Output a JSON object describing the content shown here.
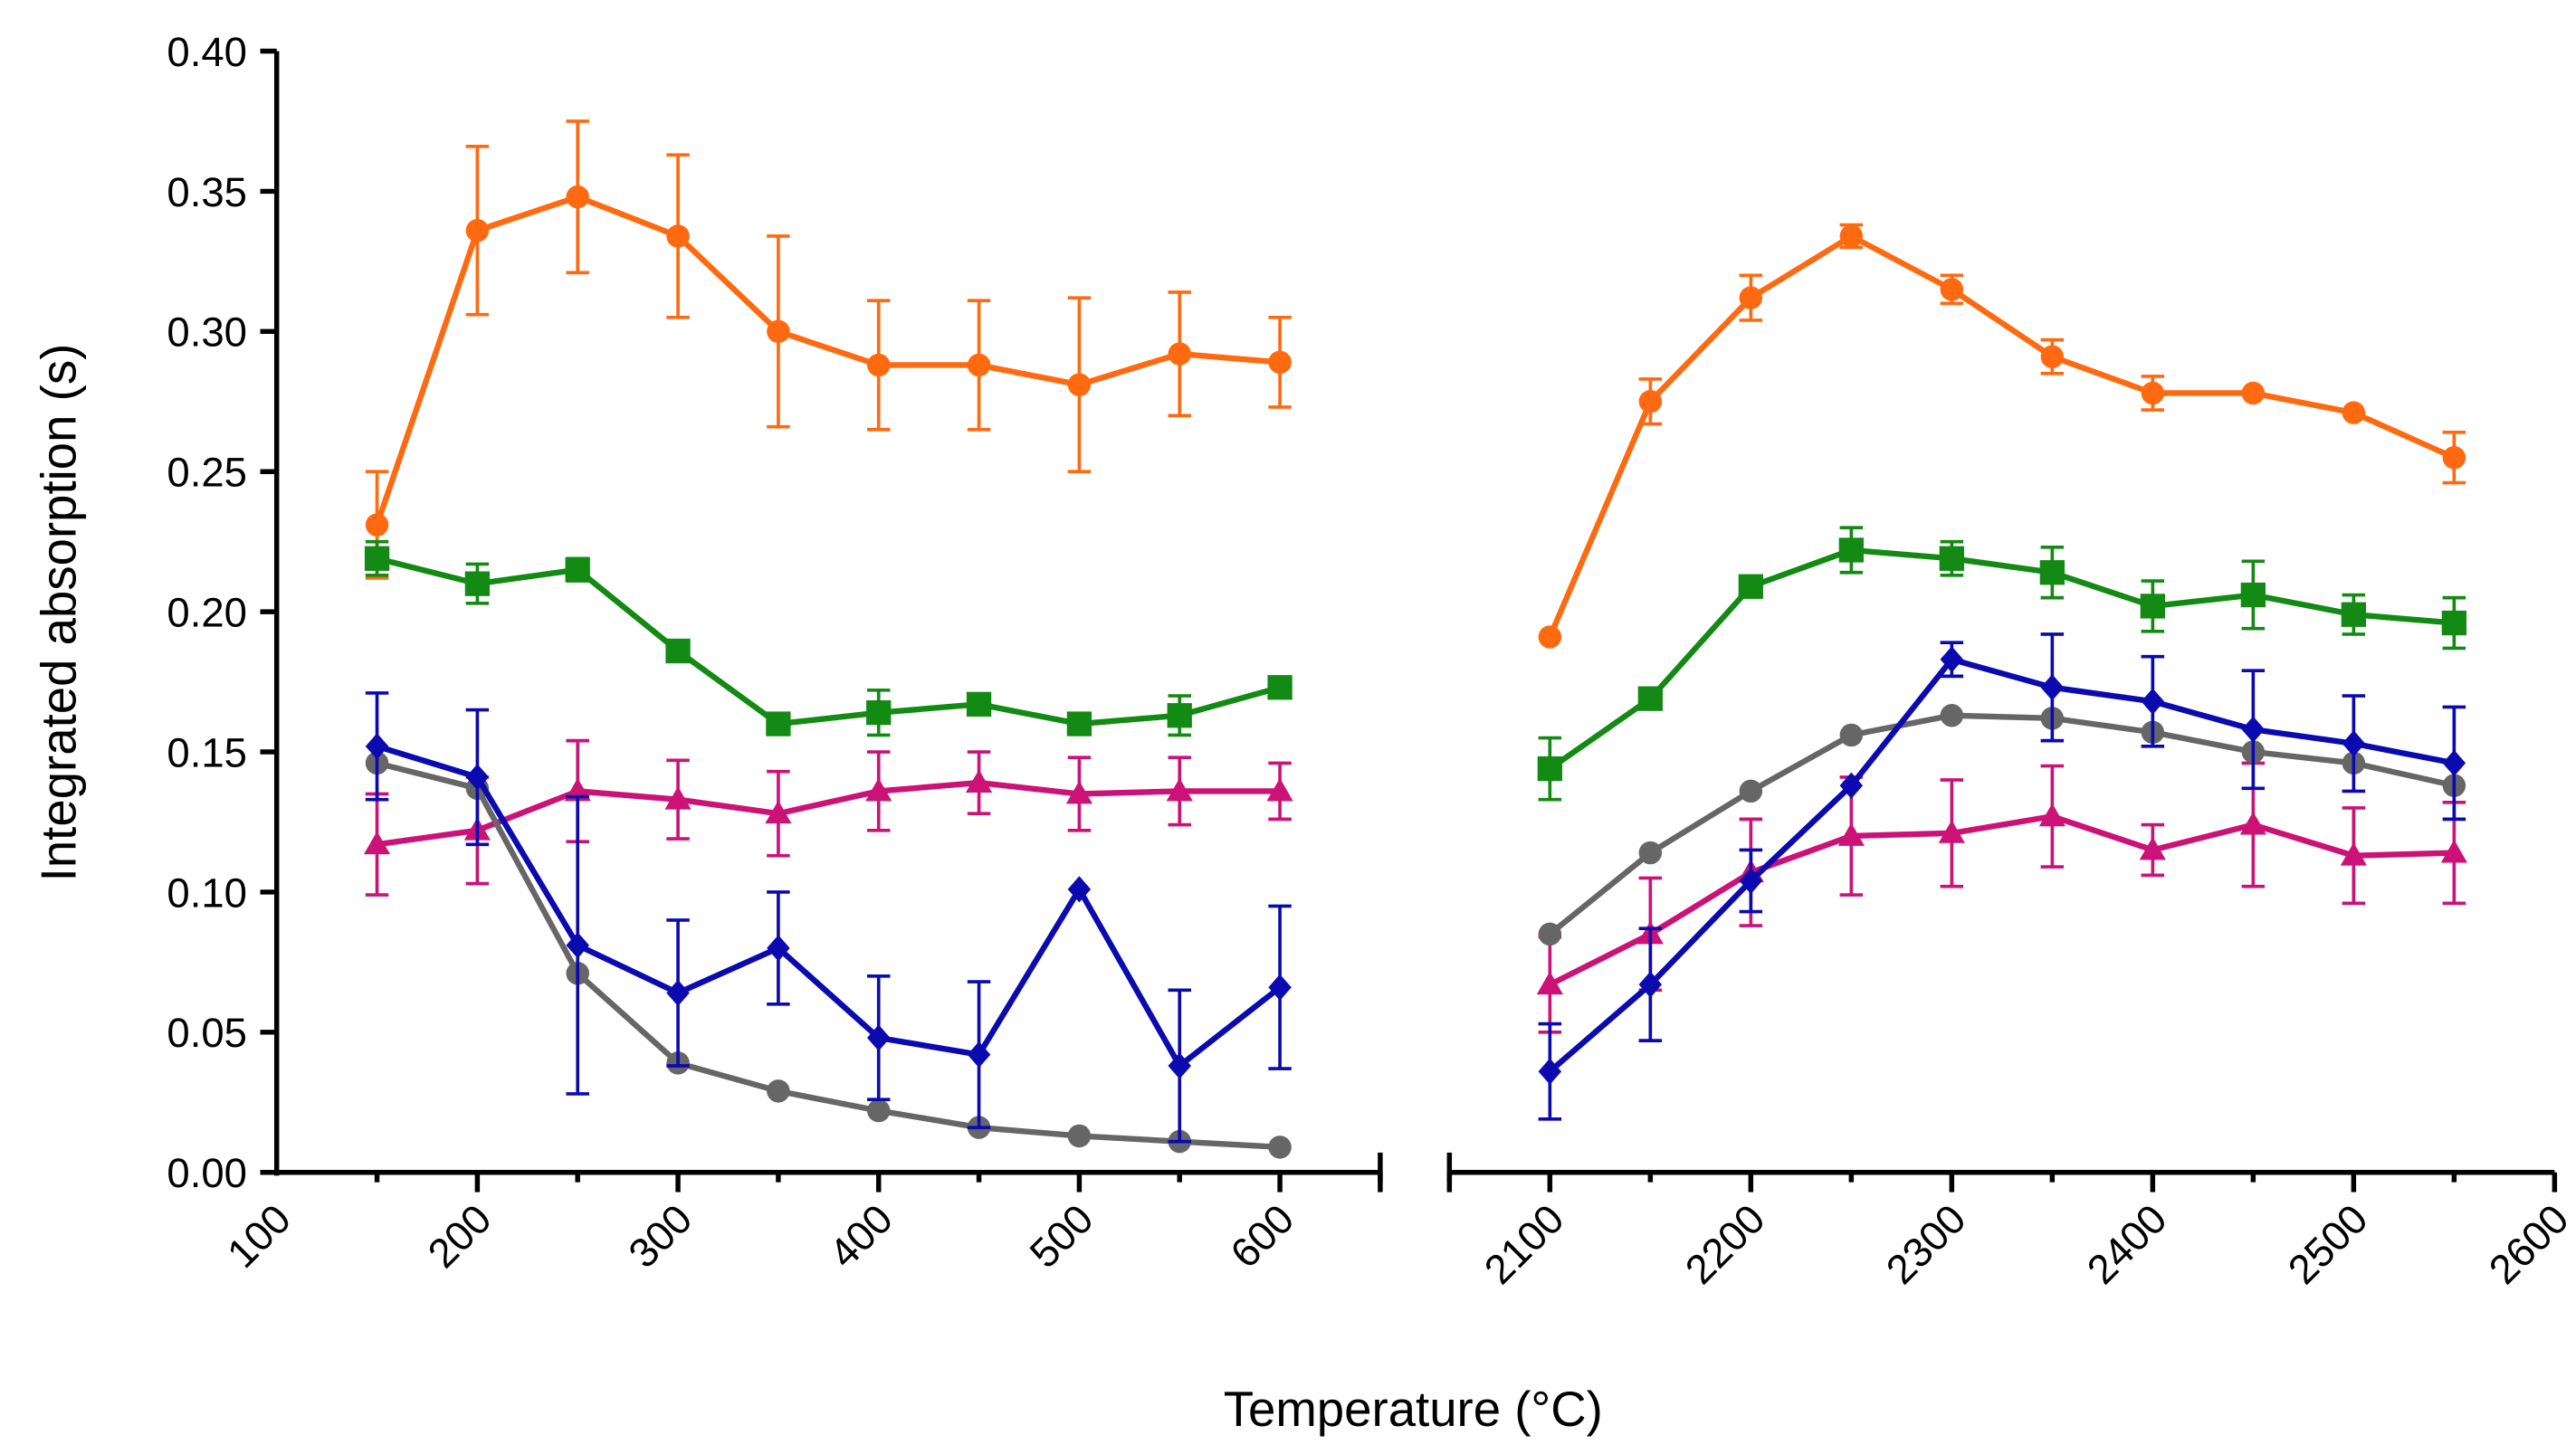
{
  "chart_data": {
    "type": "line",
    "title": "",
    "xlabel": "Temperature (°C)",
    "ylabel": "Integrated absorption (s)",
    "ylim": [
      0,
      0.4
    ],
    "yticks": [
      "0.00",
      "0.05",
      "0.10",
      "0.15",
      "0.20",
      "0.25",
      "0.30",
      "0.35",
      "0.40"
    ],
    "x_panels": [
      {
        "xlim": [
          100,
          650
        ],
        "ticks": [
          "100",
          "200",
          "300",
          "400",
          "500",
          "600"
        ]
      },
      {
        "xlim": [
          2050,
          2600
        ],
        "ticks": [
          "2100",
          "2200",
          "2300",
          "2400",
          "2500",
          "2600"
        ]
      }
    ],
    "x": [
      [
        150,
        200,
        250,
        300,
        350,
        400,
        450,
        500,
        550,
        600
      ],
      [
        2100,
        2150,
        2200,
        2250,
        2300,
        2350,
        2400,
        2450,
        2500,
        2550
      ]
    ],
    "grid": false,
    "series": [
      {
        "name": "orange-circle",
        "color": "#ff6a10",
        "marker": "circle",
        "values": [
          [
            0.231,
            0.336,
            0.348,
            0.334,
            0.3,
            0.288,
            0.288,
            0.281,
            0.292,
            0.289
          ],
          [
            0.191,
            0.275,
            0.312,
            0.334,
            0.315,
            0.291,
            0.278,
            0.278,
            0.271,
            0.255
          ]
        ],
        "errors": [
          [
            0.019,
            0.03,
            0.027,
            0.029,
            0.034,
            0.023,
            0.023,
            0.031,
            0.022,
            0.016
          ],
          [
            0,
            0.008,
            0.008,
            0.004,
            0.005,
            0.006,
            0.006,
            0,
            0,
            0.009
          ]
        ]
      },
      {
        "name": "green-square",
        "color": "#138a13",
        "marker": "square",
        "values": [
          [
            0.219,
            0.21,
            0.215,
            0.186,
            0.16,
            0.164,
            0.167,
            0.16,
            0.163,
            0.173
          ],
          [
            0.144,
            0.169,
            0.209,
            0.222,
            0.219,
            0.214,
            0.202,
            0.206,
            0.199,
            0.196
          ]
        ],
        "errors": [
          [
            0.006,
            0.007,
            0.004,
            0,
            0,
            0.008,
            0,
            0,
            0.007,
            0
          ],
          [
            0.011,
            0,
            0,
            0.008,
            0.006,
            0.009,
            0.009,
            0.012,
            0.007,
            0.009
          ]
        ]
      },
      {
        "name": "magenta-triangle",
        "color": "#cc1177",
        "marker": "triangle",
        "values": [
          [
            0.117,
            0.122,
            0.136,
            0.133,
            0.128,
            0.136,
            0.139,
            0.135,
            0.136,
            0.136
          ],
          [
            0.067,
            0.085,
            0.107,
            0.12,
            0.121,
            0.127,
            0.115,
            0.124,
            0.113,
            0.114
          ]
        ],
        "errors": [
          [
            0.018,
            0.019,
            0.018,
            0.014,
            0.015,
            0.014,
            0.011,
            0.013,
            0.012,
            0.01
          ],
          [
            0.017,
            0.02,
            0.019,
            0.021,
            0.019,
            0.018,
            0.009,
            0.022,
            0.017,
            0.018
          ]
        ]
      },
      {
        "name": "gray-circle",
        "color": "#666666",
        "marker": "circle",
        "values": [
          [
            0.146,
            0.137,
            0.071,
            0.039,
            0.029,
            0.022,
            0.016,
            0.013,
            0.011,
            0.009
          ],
          [
            0.085,
            0.114,
            0.136,
            0.156,
            0.163,
            0.162,
            0.157,
            0.15,
            0.146,
            0.138
          ]
        ],
        "errors": [
          [
            0,
            0,
            0,
            0,
            0,
            0,
            0,
            0,
            0,
            0
          ],
          [
            0,
            0,
            0,
            0,
            0,
            0,
            0,
            0,
            0,
            0
          ]
        ]
      },
      {
        "name": "blue-diamond",
        "color": "#0a0ab0",
        "marker": "diamond",
        "values": [
          [
            0.152,
            0.141,
            0.081,
            0.064,
            0.08,
            0.048,
            0.042,
            0.101,
            0.038,
            0.066
          ],
          [
            0.036,
            0.067,
            0.104,
            0.138,
            0.183,
            0.173,
            0.168,
            0.158,
            0.153,
            0.146
          ]
        ],
        "errors": [
          [
            0.019,
            0.024,
            0.053,
            0.026,
            0.02,
            0.022,
            0.026,
            0,
            0.027,
            0.029
          ],
          [
            0.017,
            0.02,
            0.011,
            0,
            0.006,
            0.019,
            0.016,
            0.021,
            0.017,
            0.02
          ]
        ]
      }
    ]
  }
}
